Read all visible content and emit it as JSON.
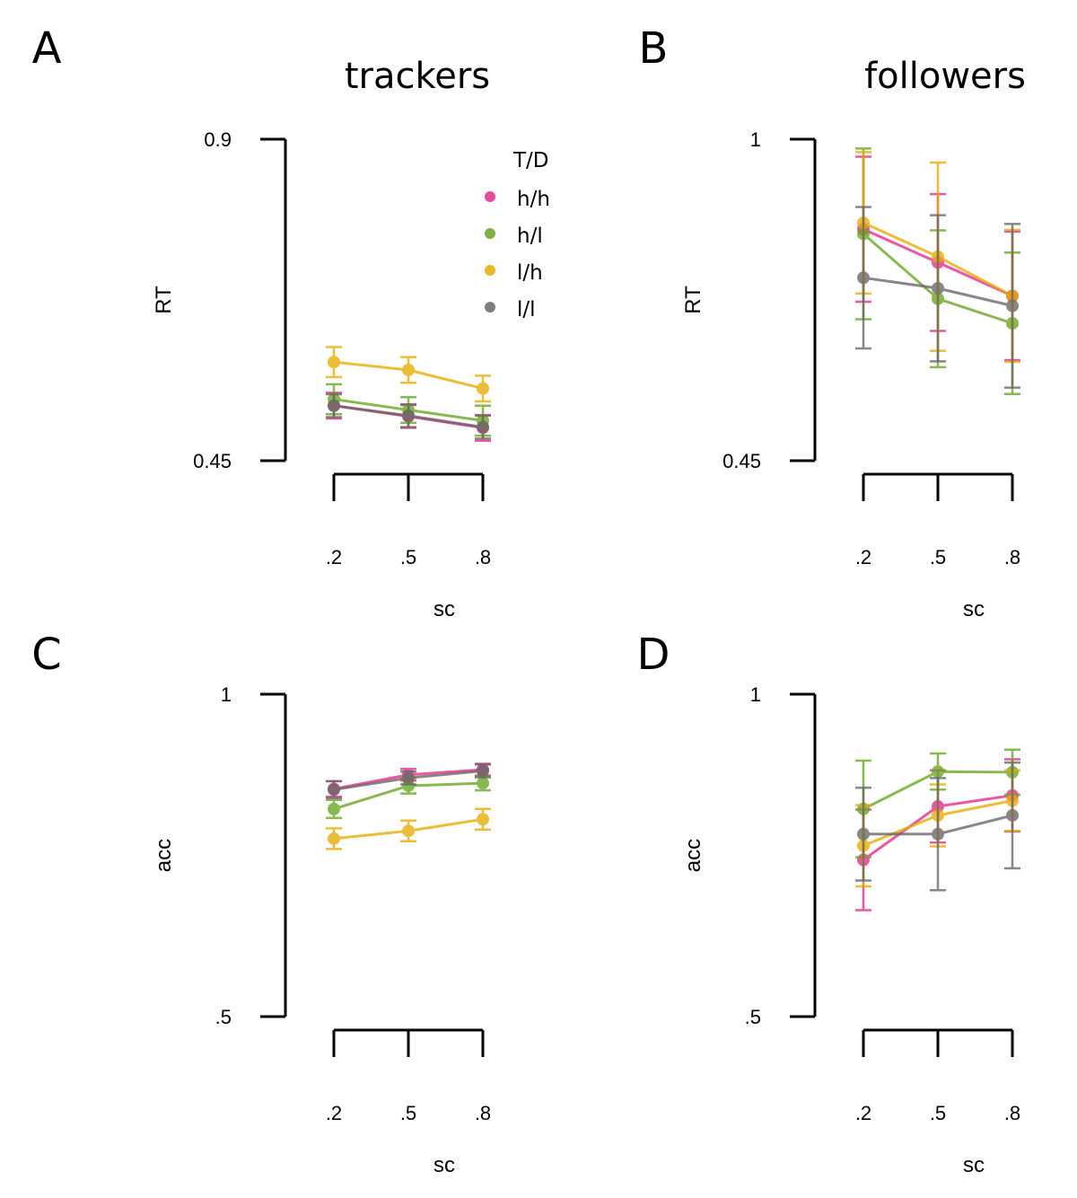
{
  "figure": {
    "col_titles": [
      "trackers",
      "followers"
    ],
    "legend": {
      "title": "T/D",
      "entries": [
        {
          "label": "h/h",
          "color": "#e7298a"
        },
        {
          "label": "h/l",
          "color": "#66a61e"
        },
        {
          "label": "l/h",
          "color": "#e6ab02"
        },
        {
          "label": "l/l",
          "color": "#666666"
        }
      ]
    }
  },
  "chart_data": [
    {
      "id": "A",
      "letter": "A",
      "type": "line",
      "title": "trackers",
      "xlabel": "sc",
      "ylabel": "RT",
      "categories": [
        ".2",
        ".5",
        ".8"
      ],
      "ylim": [
        0.45,
        0.9
      ],
      "ytick_labels": [
        "0.9",
        "0.45"
      ],
      "legend_placement": "top-right",
      "series": [
        {
          "name": "h/h",
          "color": "#e7298a",
          "values": [
            0.527,
            0.512,
            0.496
          ],
          "err": [
            0.018,
            0.016,
            0.018
          ]
        },
        {
          "name": "h/l",
          "color": "#66a61e",
          "values": [
            0.536,
            0.521,
            0.506
          ],
          "err": [
            0.021,
            0.018,
            0.021
          ]
        },
        {
          "name": "l/h",
          "color": "#e6ab02",
          "values": [
            0.588,
            0.577,
            0.551
          ],
          "err": [
            0.021,
            0.018,
            0.018
          ]
        },
        {
          "name": "l/l",
          "color": "#666666",
          "values": [
            0.527,
            0.513,
            0.497
          ],
          "err": [
            0.016,
            0.016,
            0.016
          ]
        }
      ]
    },
    {
      "id": "B",
      "letter": "B",
      "type": "line",
      "title": "followers",
      "xlabel": "sc",
      "ylabel": "RT",
      "categories": [
        ".2",
        ".5",
        ".8"
      ],
      "ylim": [
        0.45,
        1.0
      ],
      "ytick_labels": [
        "1",
        "0.45"
      ],
      "series": [
        {
          "name": "h/h",
          "color": "#e7298a",
          "values": [
            0.846,
            0.789,
            0.732
          ],
          "err": [
            0.124,
            0.117,
            0.11
          ]
        },
        {
          "name": "h/l",
          "color": "#66a61e",
          "values": [
            0.838,
            0.727,
            0.685
          ],
          "err": [
            0.146,
            0.117,
            0.121
          ]
        },
        {
          "name": "l/h",
          "color": "#e6ab02",
          "values": [
            0.857,
            0.799,
            0.732
          ],
          "err": [
            0.121,
            0.161,
            0.113
          ]
        },
        {
          "name": "l/l",
          "color": "#666666",
          "values": [
            0.763,
            0.745,
            0.715
          ],
          "err": [
            0.121,
            0.125,
            0.14
          ]
        }
      ]
    },
    {
      "id": "C",
      "letter": "C",
      "type": "line",
      "title": "",
      "xlabel": "sc",
      "ylabel": "acc",
      "categories": [
        ".2",
        ".5",
        ".8"
      ],
      "ylim": [
        0.5,
        1.0
      ],
      "ytick_labels": [
        "1",
        ".5"
      ],
      "series": [
        {
          "name": "h/h",
          "color": "#e7298a",
          "values": [
            0.853,
            0.875,
            0.883
          ],
          "err": [
            0.012,
            0.009,
            0.009
          ]
        },
        {
          "name": "h/l",
          "color": "#66a61e",
          "values": [
            0.822,
            0.858,
            0.862
          ],
          "err": [
            0.014,
            0.012,
            0.011
          ]
        },
        {
          "name": "l/h",
          "color": "#e6ab02",
          "values": [
            0.776,
            0.788,
            0.806
          ],
          "err": [
            0.016,
            0.016,
            0.016
          ]
        },
        {
          "name": "l/l",
          "color": "#666666",
          "values": [
            0.852,
            0.87,
            0.881
          ],
          "err": [
            0.013,
            0.01,
            0.01
          ]
        }
      ]
    },
    {
      "id": "D",
      "letter": "D",
      "type": "line",
      "title": "",
      "xlabel": "sc",
      "ylabel": "acc",
      "categories": [
        ".2",
        ".5",
        ".8"
      ],
      "ylim": [
        0.5,
        1.0
      ],
      "ytick_labels": [
        "1",
        ".5"
      ],
      "series": [
        {
          "name": "h/h",
          "color": "#e7298a",
          "values": [
            0.743,
            0.826,
            0.843
          ],
          "err": [
            0.078,
            0.056,
            0.056
          ]
        },
        {
          "name": "h/l",
          "color": "#66a61e",
          "values": [
            0.822,
            0.88,
            0.879
          ],
          "err": [
            0.075,
            0.028,
            0.035
          ]
        },
        {
          "name": "l/h",
          "color": "#e6ab02",
          "values": [
            0.765,
            0.812,
            0.835
          ],
          "err": [
            0.063,
            0.048,
            0.047
          ]
        },
        {
          "name": "l/l",
          "color": "#666666",
          "values": [
            0.783,
            0.783,
            0.812
          ],
          "err": [
            0.072,
            0.087,
            0.082
          ]
        }
      ]
    }
  ]
}
